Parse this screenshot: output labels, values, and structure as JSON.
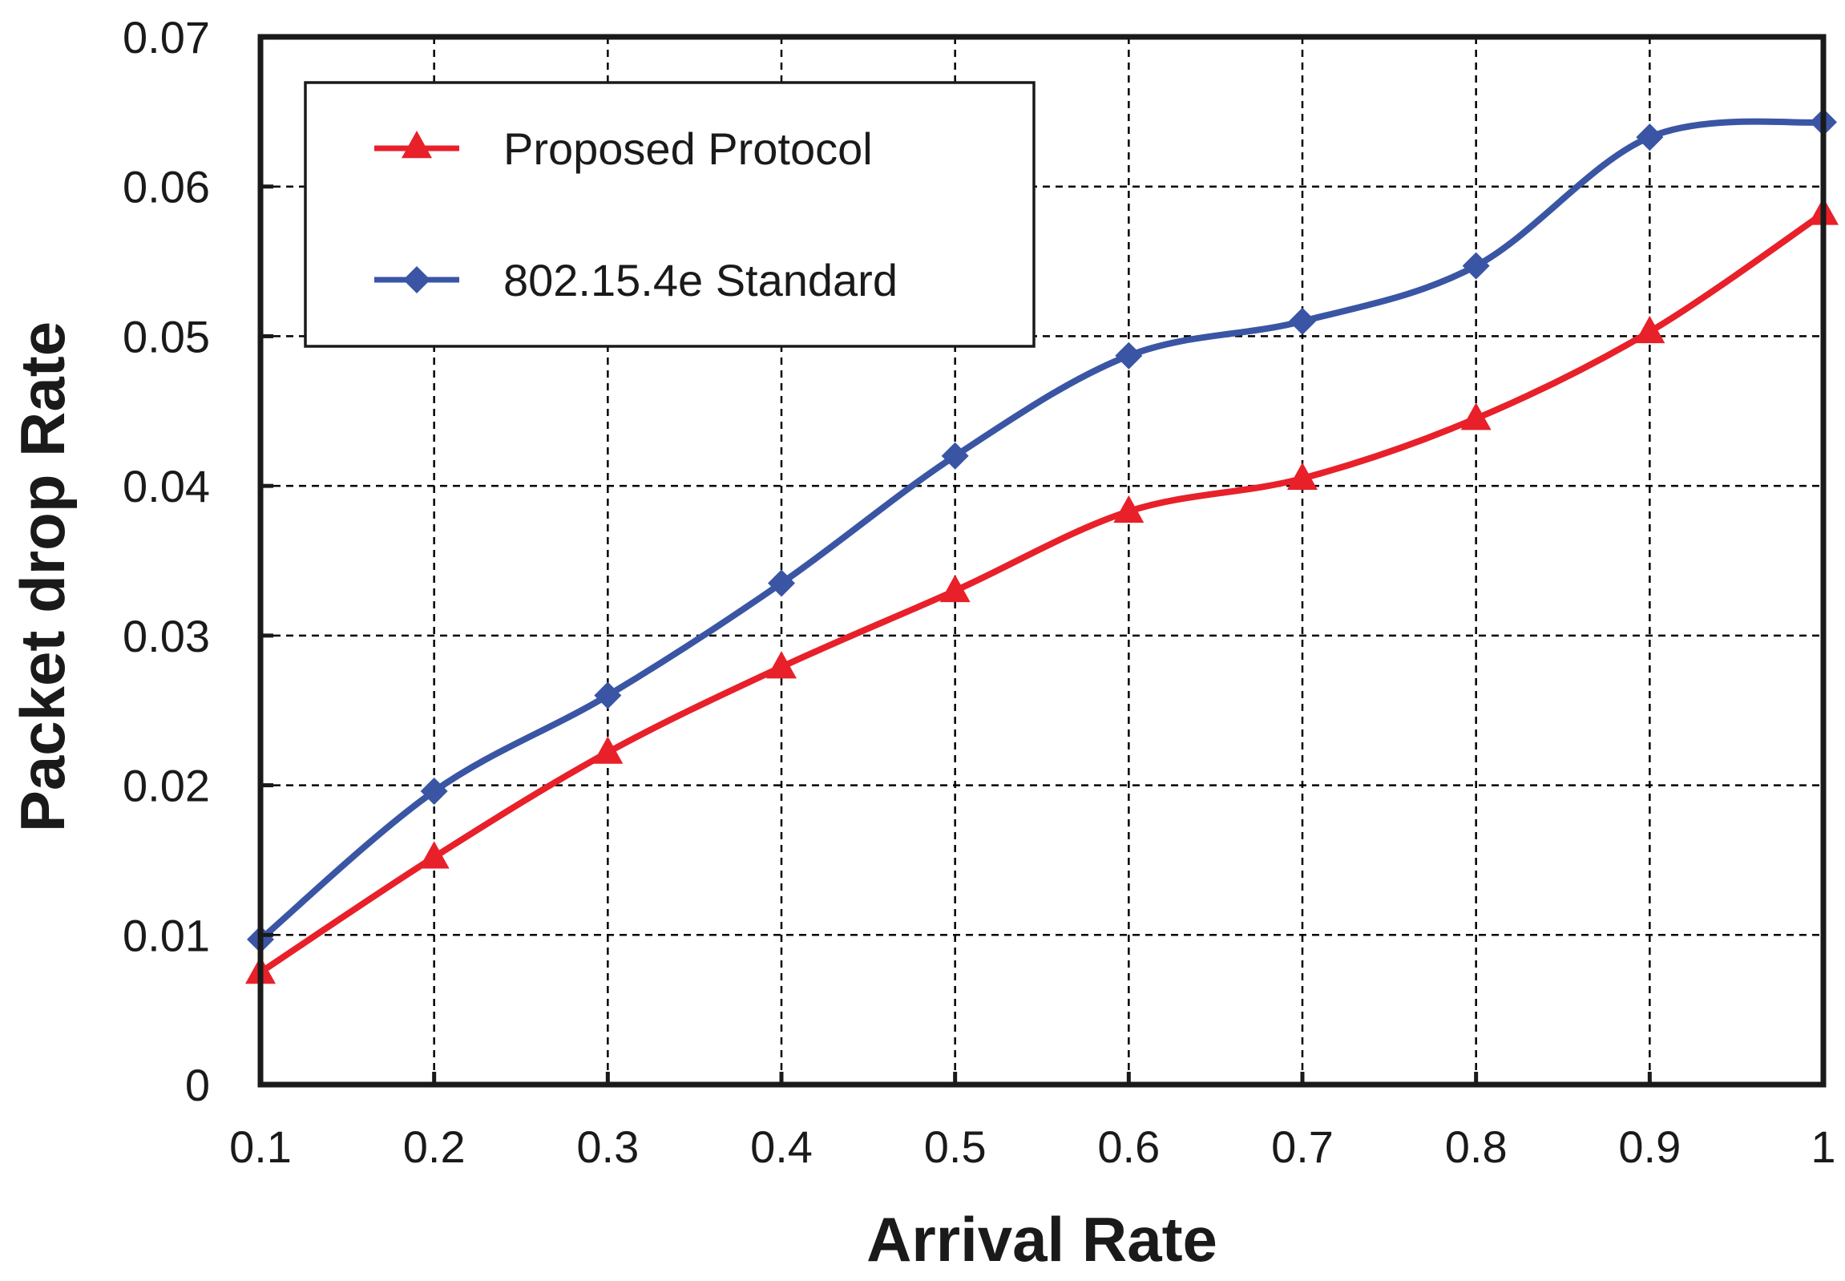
{
  "chart_data": {
    "type": "line",
    "title": "",
    "xlabel": "Arrival Rate",
    "ylabel": "Packet drop Rate",
    "x": [
      0.1,
      0.2,
      0.3,
      0.4,
      0.5,
      0.6,
      0.7,
      0.8,
      0.9,
      1.0
    ],
    "xlim": [
      0.1,
      1.0
    ],
    "ylim": [
      0,
      0.07
    ],
    "x_ticks": [
      "0.1",
      "0.2",
      "0.3",
      "0.4",
      "0.5",
      "0.6",
      "0.7",
      "0.8",
      "0.9",
      "1"
    ],
    "y_ticks": [
      "0",
      "0.01",
      "0.02",
      "0.03",
      "0.04",
      "0.05",
      "0.06",
      "0.07"
    ],
    "grid": true,
    "legend_position": "top-left",
    "series": [
      {
        "name": "Proposed Protocol",
        "color": "#e8202a",
        "marker": "triangle",
        "values": [
          0.0075,
          0.0152,
          0.0222,
          0.0279,
          0.033,
          0.0383,
          0.0405,
          0.0445,
          0.0503,
          0.0582
        ]
      },
      {
        "name": "802.15.4e Standard",
        "color": "#3a55a4",
        "marker": "diamond",
        "values": [
          0.0097,
          0.0196,
          0.026,
          0.0335,
          0.042,
          0.0487,
          0.051,
          0.0547,
          0.0633,
          0.0643
        ]
      }
    ]
  }
}
